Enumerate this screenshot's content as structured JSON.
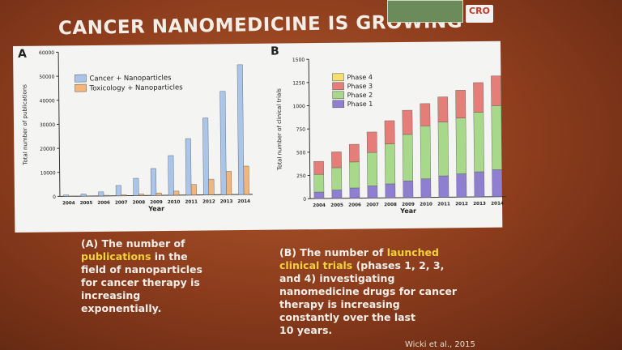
{
  "slide": {
    "title": "CANCER NANOMEDICINE IS GROWING",
    "logo_text": "CRO",
    "citation": "Wicki et al., 2015"
  },
  "captions": {
    "a_part1": "(A) The number of",
    "a_highlight": "publications",
    "a_part2": " in the",
    "a_line3": "field of nanoparticles",
    "a_line4": "for cancer therapy is",
    "a_line5": "increasing",
    "a_line6": "exponentially.",
    "b_part1": "(B) The number of ",
    "b_highlight1": "launched",
    "b_highlight2": "clinical trials",
    "b_part2": " (phases 1, 2, 3,",
    "b_line3": "and 4) investigating",
    "b_line4": "nanomedicine drugs for cancer",
    "b_line5": "therapy is increasing",
    "b_line6": "constantly over the last",
    "b_line7": "10 years."
  },
  "colors": {
    "cancer": "#a9c6ea",
    "toxicology": "#f2b57a",
    "phase1": "#8f7fd0",
    "phase2": "#a8d88a",
    "phase3": "#e57e78",
    "phase4": "#f4e06a"
  },
  "chart_data": [
    {
      "type": "bar",
      "panel_label": "A",
      "categories": [
        "2004",
        "2005",
        "2006",
        "2007",
        "2008",
        "2009",
        "2010",
        "2011",
        "2012",
        "2013",
        "2014"
      ],
      "series": [
        {
          "name": "Cancer + Nanoparticles",
          "values": [
            600,
            900,
            1700,
            4300,
            7200,
            11200,
            16500,
            23500,
            32000,
            43000,
            54000
          ]
        },
        {
          "name": "Toxicology + Nanoparticles",
          "values": [
            100,
            150,
            250,
            400,
            650,
            1000,
            1700,
            4400,
            6500,
            9700,
            11800
          ]
        }
      ],
      "xlabel": "Year",
      "ylabel": "Total number of publications",
      "ylim": [
        0,
        60000
      ],
      "yticks": [
        "0",
        "10000",
        "20000",
        "30000",
        "40000",
        "50000",
        "60000"
      ],
      "legend": "top-left"
    },
    {
      "type": "bar",
      "stacked": true,
      "panel_label": "B",
      "categories": [
        "2004",
        "2005",
        "2006",
        "2007",
        "2008",
        "2009",
        "2010",
        "2011",
        "2012",
        "2013",
        "2014"
      ],
      "series": [
        {
          "name": "Phase 1",
          "values": [
            70,
            90,
            110,
            130,
            150,
            180,
            200,
            230,
            250,
            270,
            290
          ]
        },
        {
          "name": "Phase 2",
          "values": [
            190,
            240,
            280,
            360,
            430,
            500,
            570,
            580,
            600,
            640,
            690
          ]
        },
        {
          "name": "Phase 3",
          "values": [
            140,
            170,
            190,
            220,
            250,
            260,
            240,
            270,
            300,
            320,
            320
          ]
        },
        {
          "name": "Phase 4",
          "values": [
            0,
            0,
            0,
            0,
            0,
            0,
            0,
            0,
            0,
            0,
            0
          ]
        }
      ],
      "xlabel": "Year",
      "ylabel": "Total number of clinical trials",
      "ylim": [
        0,
        1500
      ],
      "yticks": [
        "0",
        "250",
        "500",
        "750",
        "1000",
        "1250",
        "1500"
      ],
      "legend": "top-left"
    }
  ]
}
